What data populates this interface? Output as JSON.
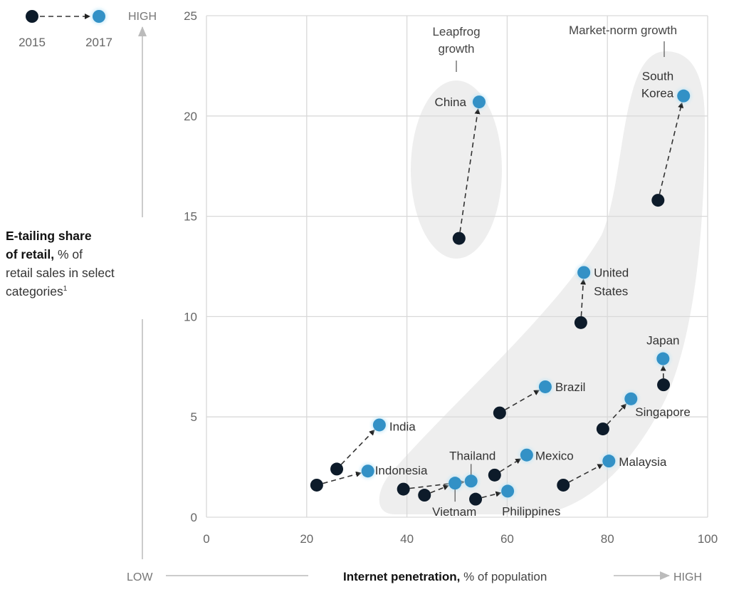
{
  "chart_data": {
    "type": "scatter",
    "title": "",
    "xlabel": "Internet penetration, % of population",
    "xlabel_bold": "Internet penetration,",
    "xlabel_rest": " % of population",
    "ylabel_bold_line1": "E-tailing share",
    "ylabel_bold_line2": "of retail,",
    "ylabel_rest_line2": " % of",
    "ylabel_line3": "retail sales in select",
    "ylabel_line4": "categories",
    "ylabel_footnote": "1",
    "xlim": [
      0,
      100
    ],
    "ylim": [
      0,
      25
    ],
    "xticks": [
      0,
      20,
      40,
      60,
      80,
      100
    ],
    "yticks": [
      0,
      5,
      10,
      15,
      20,
      25
    ],
    "xtick_labels": [
      "0",
      "20",
      "40",
      "60",
      "80",
      "100"
    ],
    "ytick_labels": [
      "0",
      "5",
      "10",
      "15",
      "20",
      "25"
    ],
    "grid": true,
    "axis_ends": {
      "y_high": "HIGH",
      "x_low": "LOW",
      "x_high": "HIGH"
    },
    "legend": {
      "placement": "top-left",
      "entries": [
        {
          "name": "2015",
          "color": "#0d1b2a"
        },
        {
          "name": "2017",
          "color": "#3391c6"
        }
      ]
    },
    "colors": {
      "y2015": "#0d1b2a",
      "y2017": "#3391c6",
      "region": "#eeeeee",
      "grid": "#d9d9d9"
    },
    "regions": [
      {
        "name": "Leapfrog growth",
        "label_lines": [
          "Leapfrog",
          "growth"
        ]
      },
      {
        "name": "Market-norm growth",
        "label_lines": [
          "Market-norm growth"
        ]
      }
    ],
    "series": [
      {
        "name": "China",
        "label_lines": [
          "China"
        ],
        "x2015": 50.4,
        "y2015": 13.9,
        "x2017": 54.4,
        "y2017": 20.7
      },
      {
        "name": "South Korea",
        "label_lines": [
          "South",
          "Korea"
        ],
        "x2015": 90.1,
        "y2015": 15.8,
        "x2017": 95.2,
        "y2017": 21.0
      },
      {
        "name": "United States",
        "label_lines": [
          "United",
          "States"
        ],
        "x2015": 74.7,
        "y2015": 9.7,
        "x2017": 75.3,
        "y2017": 12.2
      },
      {
        "name": "Japan",
        "label_lines": [
          "Japan"
        ],
        "x2015": 91.2,
        "y2015": 6.6,
        "x2017": 91.1,
        "y2017": 7.9
      },
      {
        "name": "Brazil",
        "label_lines": [
          "Brazil"
        ],
        "x2015": 58.5,
        "y2015": 5.2,
        "x2017": 67.6,
        "y2017": 6.5
      },
      {
        "name": "Singapore",
        "label_lines": [
          "Singapore"
        ],
        "x2015": 79.1,
        "y2015": 4.4,
        "x2017": 84.7,
        "y2017": 5.9
      },
      {
        "name": "India",
        "label_lines": [
          "India"
        ],
        "x2015": 26.0,
        "y2015": 2.4,
        "x2017": 34.5,
        "y2017": 4.6
      },
      {
        "name": "Mexico",
        "label_lines": [
          "Mexico"
        ],
        "x2015": 57.5,
        "y2015": 2.1,
        "x2017": 63.9,
        "y2017": 3.1
      },
      {
        "name": "Malaysia",
        "label_lines": [
          "Malaysia"
        ],
        "x2015": 71.2,
        "y2015": 1.6,
        "x2017": 80.3,
        "y2017": 2.8
      },
      {
        "name": "Indonesia",
        "label_lines": [
          "Indonesia"
        ],
        "x2015": 22.0,
        "y2015": 1.6,
        "x2017": 32.2,
        "y2017": 2.3
      },
      {
        "name": "Thailand",
        "label_lines": [
          "Thailand"
        ],
        "x2015": 39.3,
        "y2015": 1.4,
        "x2017": 52.8,
        "y2017": 1.8
      },
      {
        "name": "Vietnam",
        "label_lines": [
          "Vietnam"
        ],
        "x2015": 43.5,
        "y2015": 1.1,
        "x2017": 49.6,
        "y2017": 1.7
      },
      {
        "name": "Philippines",
        "label_lines": [
          "Philippines"
        ],
        "x2015": 53.7,
        "y2015": 0.9,
        "x2017": 60.1,
        "y2017": 1.3
      }
    ]
  }
}
